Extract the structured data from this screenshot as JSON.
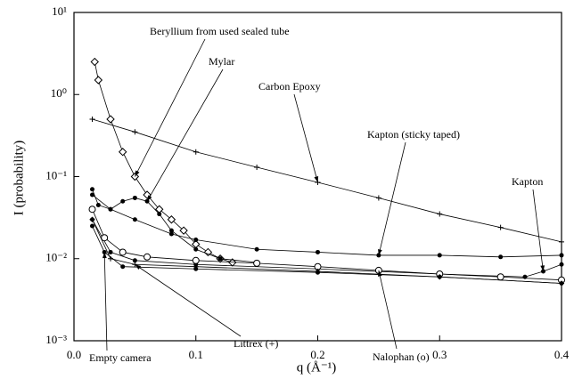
{
  "chart_data": {
    "type": "scatter",
    "x_label": "q (Å⁻¹)",
    "y_label": "I (probability)",
    "xlim": [
      0,
      0.4
    ],
    "xticks": [
      {
        "value": 0,
        "label": "0.0"
      },
      0.1,
      0.2,
      0.3,
      0.4
    ],
    "ylim": [
      0.001,
      10
    ],
    "yticks": [
      {
        "value": 10,
        "label": "10¹"
      },
      {
        "value": 1,
        "label": "10⁰"
      },
      {
        "value": 0.1,
        "label": "10⁻¹"
      },
      {
        "value": 0.01,
        "label": "10⁻²"
      },
      {
        "value": 0.001,
        "label": "10⁻³"
      }
    ],
    "y_scale": "log",
    "series": [
      {
        "name": "Beryllium from  used sealed tube",
        "color": "#000000",
        "marker": "diamond",
        "x": [
          0.017,
          0.02,
          0.03,
          0.04,
          0.05,
          0.06,
          0.07,
          0.08,
          0.09,
          0.1,
          0.11,
          0.12,
          0.13
        ],
        "values": [
          2.5,
          1.5,
          0.5,
          0.2,
          0.1,
          0.06,
          0.04,
          0.03,
          0.022,
          0.015,
          0.012,
          0.01,
          0.009
        ]
      },
      {
        "name": "Mylar",
        "color": "#000000",
        "marker": "dot",
        "x": [
          0.015,
          0.02,
          0.03,
          0.04,
          0.05,
          0.06,
          0.07,
          0.08,
          0.1,
          0.12,
          0.15
        ],
        "values": [
          0.07,
          0.045,
          0.04,
          0.05,
          0.055,
          0.05,
          0.035,
          0.022,
          0.013,
          0.01,
          0.009
        ]
      },
      {
        "name": "Carbon Epoxy",
        "color": "#000000",
        "marker": "plus",
        "x": [
          0.015,
          0.05,
          0.1,
          0.15,
          0.2,
          0.25,
          0.3,
          0.35,
          0.4
        ],
        "values": [
          0.5,
          0.35,
          0.2,
          0.13,
          0.085,
          0.055,
          0.035,
          0.024,
          0.016
        ]
      },
      {
        "name": "Kapton (sticky taped)",
        "color": "#000000",
        "marker": "dot",
        "x": [
          0.015,
          0.03,
          0.05,
          0.08,
          0.1,
          0.15,
          0.2,
          0.25,
          0.3,
          0.35,
          0.4
        ],
        "values": [
          0.06,
          0.04,
          0.03,
          0.02,
          0.017,
          0.013,
          0.012,
          0.011,
          0.011,
          0.0105,
          0.011
        ]
      },
      {
        "name": "Kapton",
        "color": "#000000",
        "marker": "dot",
        "x": [
          0.015,
          0.03,
          0.05,
          0.1,
          0.2,
          0.3,
          0.37,
          0.385,
          0.4
        ],
        "values": [
          0.03,
          0.012,
          0.0095,
          0.0085,
          0.0075,
          0.0065,
          0.006,
          0.007,
          0.0085
        ]
      },
      {
        "name": "Nalophan (o)",
        "color": "#000000",
        "marker": "circle",
        "x": [
          0.015,
          0.025,
          0.04,
          0.06,
          0.1,
          0.15,
          0.2,
          0.25,
          0.3,
          0.35,
          0.4
        ],
        "values": [
          0.04,
          0.018,
          0.012,
          0.0105,
          0.0095,
          0.0088,
          0.008,
          0.0072,
          0.0065,
          0.006,
          0.0055
        ]
      },
      {
        "name": "Littrex  (+)",
        "color": "#000000",
        "marker": "plus",
        "x": [
          0.015,
          0.03,
          0.05,
          0.1,
          0.2,
          0.3,
          0.4
        ],
        "values": [
          0.03,
          0.01,
          0.0085,
          0.008,
          0.007,
          0.006,
          0.005
        ]
      },
      {
        "name": "Empty camera",
        "color": "#000000",
        "marker": "dot",
        "x": [
          0.015,
          0.025,
          0.04,
          0.1,
          0.2,
          0.3,
          0.4
        ],
        "values": [
          0.025,
          0.012,
          0.008,
          0.0075,
          0.0068,
          0.006,
          0.005
        ]
      }
    ]
  }
}
